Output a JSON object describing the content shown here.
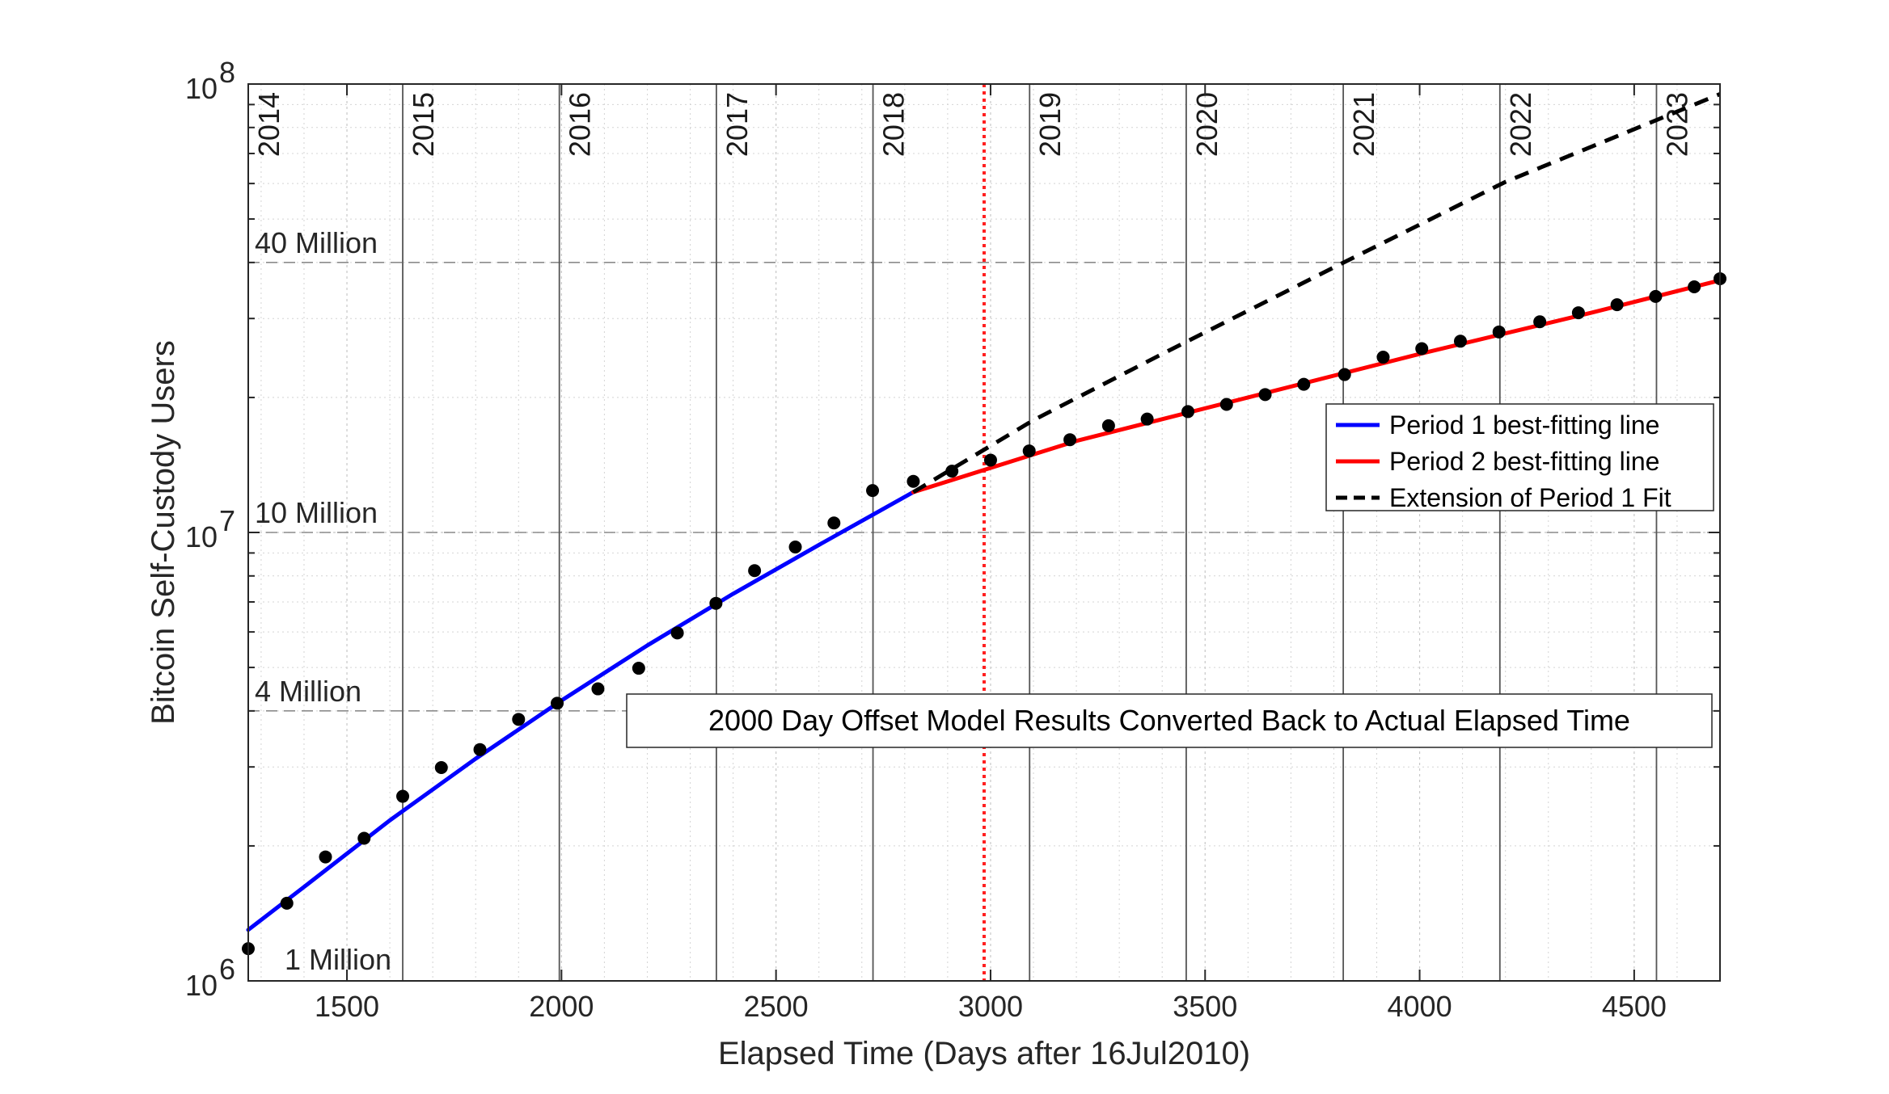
{
  "chart_data": {
    "type": "line",
    "xlabel": "Elapsed Time (Days after 16Jul2010)",
    "ylabel": "Bitcoin Self-Custody Users",
    "xlim": [
      1270,
      4700
    ],
    "ylim": [
      1000000,
      100000000
    ],
    "yscale": "log",
    "grid": true,
    "legend_position": "right",
    "x_ticks": [
      {
        "value": 1500,
        "label": "1500"
      },
      {
        "value": 2000,
        "label": "2000"
      },
      {
        "value": 2500,
        "label": "2500"
      },
      {
        "value": 3000,
        "label": "3000"
      },
      {
        "value": 3500,
        "label": "3500"
      },
      {
        "value": 4000,
        "label": "4000"
      },
      {
        "value": 4500,
        "label": "4500"
      }
    ],
    "y_ticks": [
      {
        "value": 1000000,
        "base": "10",
        "exp": "6"
      },
      {
        "value": 10000000,
        "base": "10",
        "exp": "7"
      },
      {
        "value": 100000000,
        "base": "10",
        "exp": "8"
      }
    ],
    "year_markers": [
      {
        "label": "2014",
        "x": 1265
      },
      {
        "label": "2015",
        "x": 1630
      },
      {
        "label": "2016",
        "x": 1995
      },
      {
        "label": "2017",
        "x": 2361
      },
      {
        "label": "2018",
        "x": 2726
      },
      {
        "label": "2019",
        "x": 3091
      },
      {
        "label": "2020",
        "x": 3456
      },
      {
        "label": "2021",
        "x": 3822
      },
      {
        "label": "2022",
        "x": 4187
      },
      {
        "label": "2023",
        "x": 4552
      }
    ],
    "reference_lines": [
      {
        "label": "1 Million",
        "y": 1000000
      },
      {
        "label": "4 Million",
        "y": 4000000
      },
      {
        "label": "10 Million",
        "y": 10000000
      },
      {
        "label": "40 Million",
        "y": 40000000
      }
    ],
    "period_boundary_x": 2985,
    "annotation": "2000 Day Offset Model Results Converted Back to Actual Elapsed Time",
    "series": [
      {
        "name": "Period 1 best-fitting line",
        "color": "#0000ff",
        "style": "solid",
        "x": [
          1270,
          1400,
          1600,
          1800,
          2000,
          2200,
          2400,
          2600,
          2820
        ],
        "y": [
          1300000,
          1620000,
          2280000,
          3130000,
          4220000,
          5600000,
          7300000,
          9380000,
          12300000
        ]
      },
      {
        "name": "Period 2 best-fitting line",
        "color": "#ff0000",
        "style": "solid",
        "x": [
          2820,
          3200,
          3600,
          4000,
          4400,
          4700
        ],
        "y": [
          12300000,
          16000000,
          20000000,
          25000000,
          30900000,
          36500000
        ]
      },
      {
        "name": "Extension of Period 1 Fit",
        "color": "#000000",
        "style": "dashed",
        "x": [
          2820,
          3100,
          3400,
          3800,
          4200,
          4700
        ],
        "y": [
          12300000,
          17800000,
          25000000,
          39000000,
          60500000,
          95000000
        ]
      },
      {
        "name": "",
        "color": "#000000",
        "style": "markers",
        "x": [
          1270,
          1360,
          1450,
          1540,
          1630,
          1720,
          1810,
          1900,
          1990,
          2085,
          2180,
          2270,
          2360,
          2450,
          2545,
          2635,
          2725,
          2820,
          2910,
          3000,
          3090,
          3185,
          3275,
          3365,
          3460,
          3550,
          3640,
          3730,
          3825,
          3915,
          4005,
          4095,
          4185,
          4280,
          4370,
          4460,
          4550,
          4640,
          4700
        ],
        "y": [
          1180000,
          1490000,
          1890000,
          2080000,
          2580000,
          2990000,
          3280000,
          3830000,
          4160000,
          4480000,
          4980000,
          5970000,
          6950000,
          8220000,
          9280000,
          10500000,
          12400000,
          13000000,
          13700000,
          14500000,
          15200000,
          16100000,
          17300000,
          17900000,
          18600000,
          19300000,
          20300000,
          21400000,
          22500000,
          24600000,
          25700000,
          26700000,
          28000000,
          29500000,
          30900000,
          32200000,
          33600000,
          35300000,
          36800000
        ]
      }
    ]
  }
}
